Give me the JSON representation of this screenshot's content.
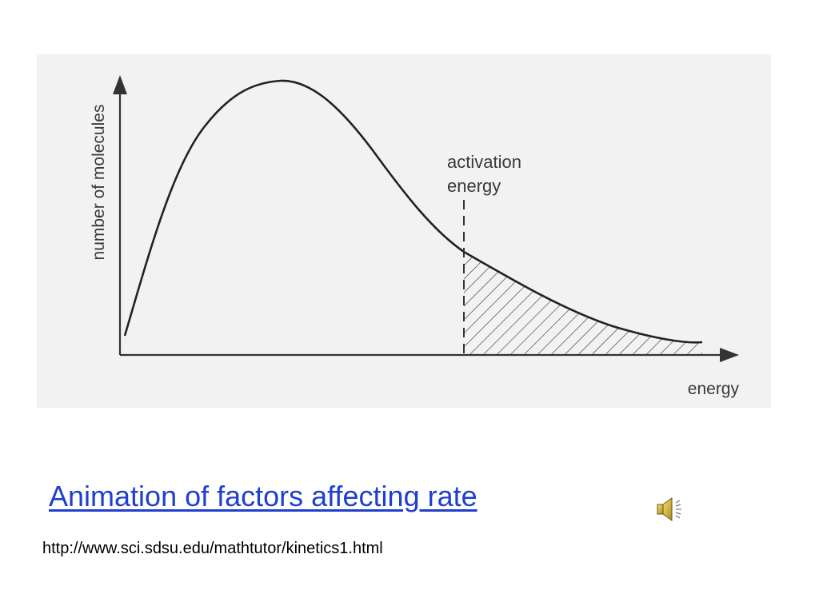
{
  "diagram": {
    "y_axis_label": "number of molecules",
    "x_axis_label": "energy",
    "annotation_line1": "activation",
    "annotation_line2": "energy"
  },
  "link": {
    "text": "Animation of factors affecting rate",
    "color": "#1f3fd0"
  },
  "url": {
    "text": "http://www.sci.sdsu.edu/mathtutor/kinetics1.html"
  },
  "sound": {
    "icon": "speaker-icon"
  }
}
